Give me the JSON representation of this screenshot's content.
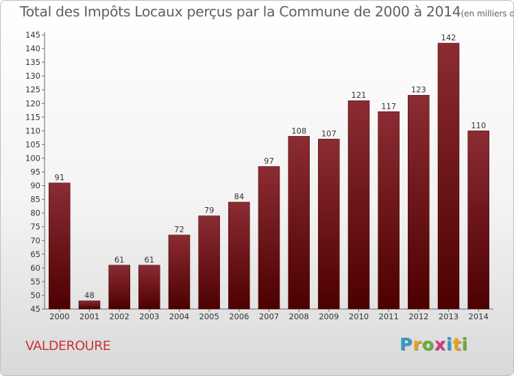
{
  "chart_data": {
    "type": "bar",
    "title": "Total des Impôts Locaux perçus par la Commune de 2000 à 2014",
    "unit_label": "(en milliers d'€)",
    "categories": [
      "2000",
      "2001",
      "2002",
      "2003",
      "2004",
      "2005",
      "2006",
      "2007",
      "2008",
      "2009",
      "2010",
      "2011",
      "2012",
      "2013",
      "2014"
    ],
    "values": [
      91,
      48,
      61,
      61,
      72,
      79,
      84,
      97,
      108,
      107,
      121,
      117,
      123,
      142,
      110
    ],
    "value_labels": [
      "91",
      "48",
      "61",
      "61",
      "72",
      "79",
      "84",
      "97",
      "108",
      "107",
      "121",
      "117",
      "123",
      "142",
      "110"
    ],
    "y_ticks": [
      "45",
      "50",
      "55",
      "60",
      "65",
      "70",
      "75",
      "80",
      "85",
      "90",
      "95",
      "100",
      "105",
      "110",
      "115",
      "120",
      "125",
      "130",
      "135",
      "140",
      "145"
    ],
    "ylim": [
      45,
      145
    ],
    "ytick_step": 5,
    "xlabel": "",
    "ylabel": "",
    "bar_color_top": "#8b2c33",
    "bar_color_bottom": "#4d0000",
    "grid": false,
    "legend": false
  },
  "commune": {
    "name": "VALDEROURE",
    "color": "#cc3333"
  },
  "logo": {
    "letters": [
      "P",
      "r",
      "o",
      "x",
      "i",
      "t",
      "i"
    ],
    "colors": [
      "#3399cc",
      "#e8a317",
      "#66b032",
      "#d63384",
      "#3399cc",
      "#e8a317",
      "#66b032"
    ]
  }
}
